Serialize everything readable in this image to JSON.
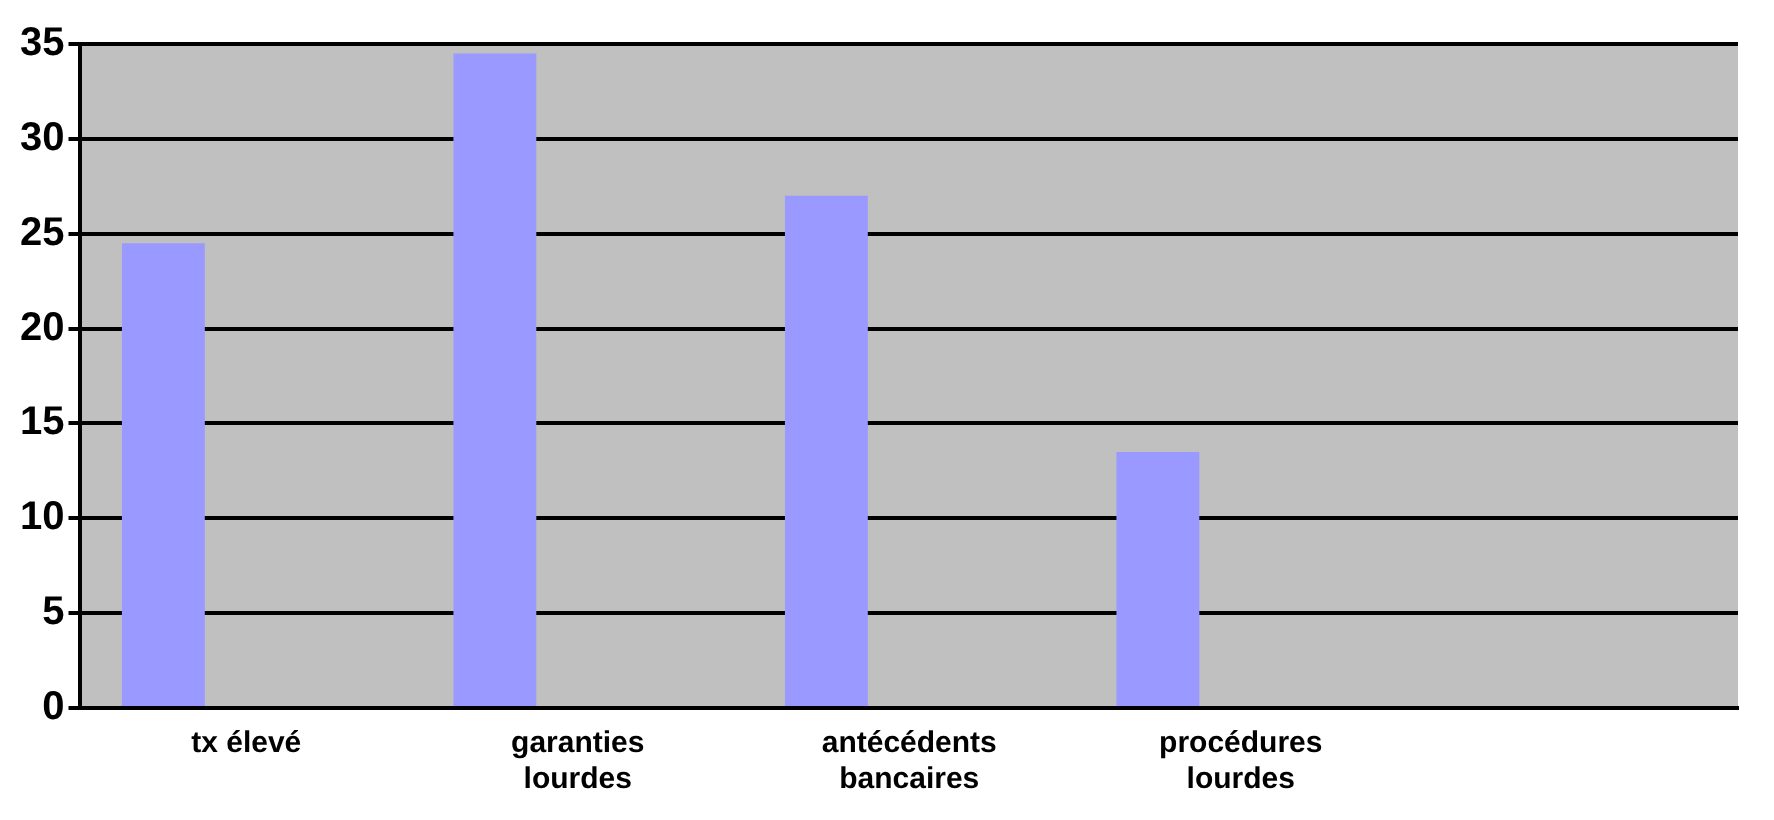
{
  "chart_data": {
    "type": "bar",
    "categories": [
      "tx élevé",
      "garanties lourdes",
      "antécédents bancaires",
      "procédures lourdes",
      null
    ],
    "series": [
      {
        "color": "#9999ff",
        "values": [
          24.5,
          34.5,
          27,
          13.5,
          null
        ]
      },
      {
        "color": "#7a2950",
        "values": [
          0,
          0,
          0,
          0,
          null
        ]
      },
      {
        "color": "#c8c8a0",
        "values": [
          0,
          0,
          0,
          0,
          null
        ]
      }
    ],
    "ylim": [
      0,
      35
    ],
    "yticks": [
      0,
      5,
      10,
      15,
      20,
      25,
      30,
      35
    ],
    "grid": "y",
    "legend": false
  }
}
